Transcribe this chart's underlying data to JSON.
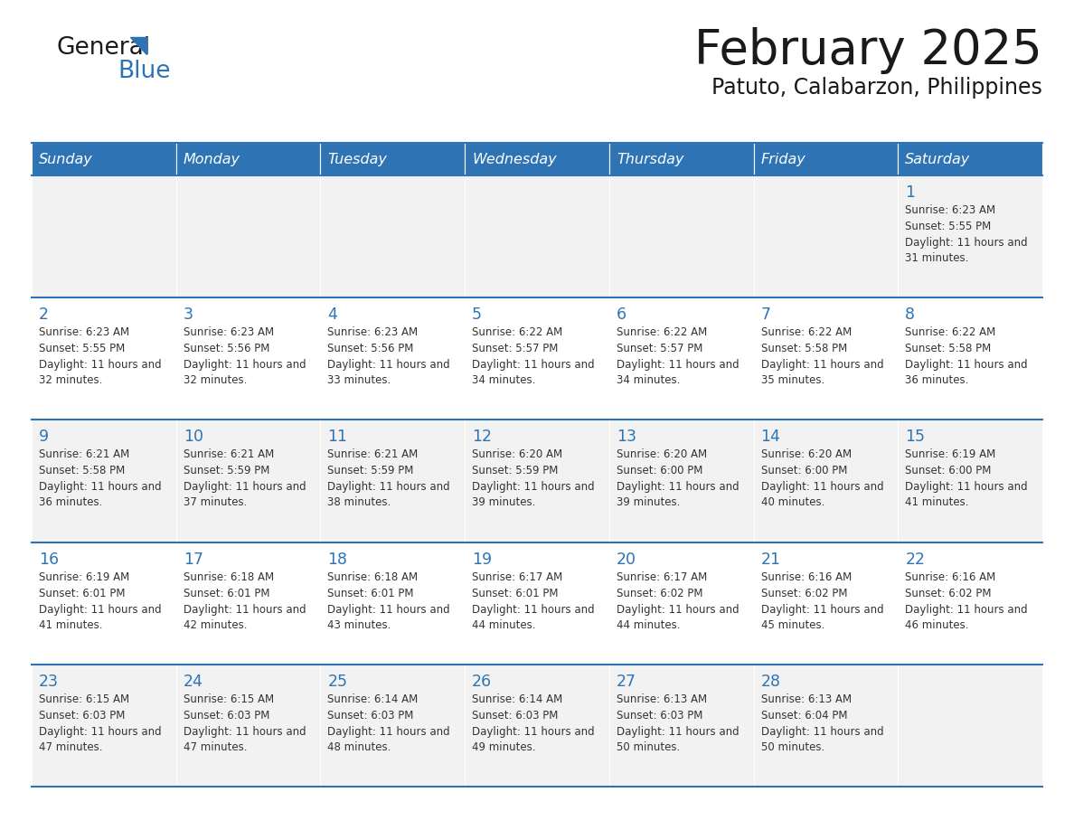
{
  "title": "February 2025",
  "subtitle": "Patuto, Calabarzon, Philippines",
  "header_bg": "#2e74b5",
  "header_text": "#ffffff",
  "row_bg_light": "#f2f2f2",
  "row_bg_white": "#ffffff",
  "cell_border": "#2e74b5",
  "day_headers": [
    "Sunday",
    "Monday",
    "Tuesday",
    "Wednesday",
    "Thursday",
    "Friday",
    "Saturday"
  ],
  "days": [
    {
      "date": 1,
      "col": 6,
      "row": 0,
      "sunrise": "6:23 AM",
      "sunset": "5:55 PM",
      "daylight": "11 hours and 31 minutes."
    },
    {
      "date": 2,
      "col": 0,
      "row": 1,
      "sunrise": "6:23 AM",
      "sunset": "5:55 PM",
      "daylight": "11 hours and 32 minutes."
    },
    {
      "date": 3,
      "col": 1,
      "row": 1,
      "sunrise": "6:23 AM",
      "sunset": "5:56 PM",
      "daylight": "11 hours and 32 minutes."
    },
    {
      "date": 4,
      "col": 2,
      "row": 1,
      "sunrise": "6:23 AM",
      "sunset": "5:56 PM",
      "daylight": "11 hours and 33 minutes."
    },
    {
      "date": 5,
      "col": 3,
      "row": 1,
      "sunrise": "6:22 AM",
      "sunset": "5:57 PM",
      "daylight": "11 hours and 34 minutes."
    },
    {
      "date": 6,
      "col": 4,
      "row": 1,
      "sunrise": "6:22 AM",
      "sunset": "5:57 PM",
      "daylight": "11 hours and 34 minutes."
    },
    {
      "date": 7,
      "col": 5,
      "row": 1,
      "sunrise": "6:22 AM",
      "sunset": "5:58 PM",
      "daylight": "11 hours and 35 minutes."
    },
    {
      "date": 8,
      "col": 6,
      "row": 1,
      "sunrise": "6:22 AM",
      "sunset": "5:58 PM",
      "daylight": "11 hours and 36 minutes."
    },
    {
      "date": 9,
      "col": 0,
      "row": 2,
      "sunrise": "6:21 AM",
      "sunset": "5:58 PM",
      "daylight": "11 hours and 36 minutes."
    },
    {
      "date": 10,
      "col": 1,
      "row": 2,
      "sunrise": "6:21 AM",
      "sunset": "5:59 PM",
      "daylight": "11 hours and 37 minutes."
    },
    {
      "date": 11,
      "col": 2,
      "row": 2,
      "sunrise": "6:21 AM",
      "sunset": "5:59 PM",
      "daylight": "11 hours and 38 minutes."
    },
    {
      "date": 12,
      "col": 3,
      "row": 2,
      "sunrise": "6:20 AM",
      "sunset": "5:59 PM",
      "daylight": "11 hours and 39 minutes."
    },
    {
      "date": 13,
      "col": 4,
      "row": 2,
      "sunrise": "6:20 AM",
      "sunset": "6:00 PM",
      "daylight": "11 hours and 39 minutes."
    },
    {
      "date": 14,
      "col": 5,
      "row": 2,
      "sunrise": "6:20 AM",
      "sunset": "6:00 PM",
      "daylight": "11 hours and 40 minutes."
    },
    {
      "date": 15,
      "col": 6,
      "row": 2,
      "sunrise": "6:19 AM",
      "sunset": "6:00 PM",
      "daylight": "11 hours and 41 minutes."
    },
    {
      "date": 16,
      "col": 0,
      "row": 3,
      "sunrise": "6:19 AM",
      "sunset": "6:01 PM",
      "daylight": "11 hours and 41 minutes."
    },
    {
      "date": 17,
      "col": 1,
      "row": 3,
      "sunrise": "6:18 AM",
      "sunset": "6:01 PM",
      "daylight": "11 hours and 42 minutes."
    },
    {
      "date": 18,
      "col": 2,
      "row": 3,
      "sunrise": "6:18 AM",
      "sunset": "6:01 PM",
      "daylight": "11 hours and 43 minutes."
    },
    {
      "date": 19,
      "col": 3,
      "row": 3,
      "sunrise": "6:17 AM",
      "sunset": "6:01 PM",
      "daylight": "11 hours and 44 minutes."
    },
    {
      "date": 20,
      "col": 4,
      "row": 3,
      "sunrise": "6:17 AM",
      "sunset": "6:02 PM",
      "daylight": "11 hours and 44 minutes."
    },
    {
      "date": 21,
      "col": 5,
      "row": 3,
      "sunrise": "6:16 AM",
      "sunset": "6:02 PM",
      "daylight": "11 hours and 45 minutes."
    },
    {
      "date": 22,
      "col": 6,
      "row": 3,
      "sunrise": "6:16 AM",
      "sunset": "6:02 PM",
      "daylight": "11 hours and 46 minutes."
    },
    {
      "date": 23,
      "col": 0,
      "row": 4,
      "sunrise": "6:15 AM",
      "sunset": "6:03 PM",
      "daylight": "11 hours and 47 minutes."
    },
    {
      "date": 24,
      "col": 1,
      "row": 4,
      "sunrise": "6:15 AM",
      "sunset": "6:03 PM",
      "daylight": "11 hours and 47 minutes."
    },
    {
      "date": 25,
      "col": 2,
      "row": 4,
      "sunrise": "6:14 AM",
      "sunset": "6:03 PM",
      "daylight": "11 hours and 48 minutes."
    },
    {
      "date": 26,
      "col": 3,
      "row": 4,
      "sunrise": "6:14 AM",
      "sunset": "6:03 PM",
      "daylight": "11 hours and 49 minutes."
    },
    {
      "date": 27,
      "col": 4,
      "row": 4,
      "sunrise": "6:13 AM",
      "sunset": "6:03 PM",
      "daylight": "11 hours and 50 minutes."
    },
    {
      "date": 28,
      "col": 5,
      "row": 4,
      "sunrise": "6:13 AM",
      "sunset": "6:04 PM",
      "daylight": "11 hours and 50 minutes."
    }
  ],
  "num_rows": 5,
  "num_cols": 7,
  "title_color": "#1a1a1a",
  "subtitle_color": "#1a1a1a",
  "date_num_color": "#2e74b5",
  "cell_text_color": "#333333",
  "logo_triangle_color": "#2e74b5",
  "logo_color_general": "#1a1a1a",
  "logo_color_blue": "#2e74b5"
}
